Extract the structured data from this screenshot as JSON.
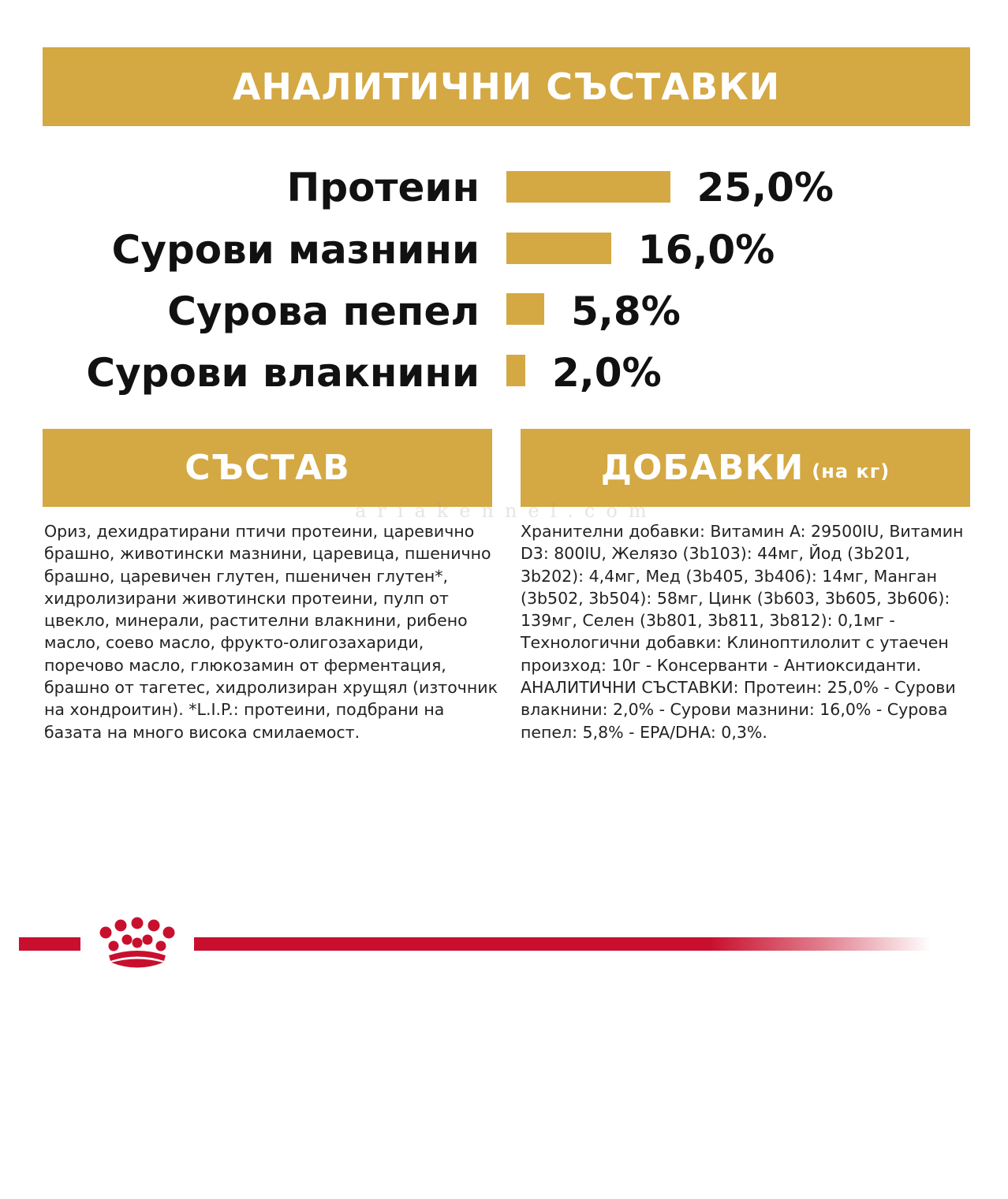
{
  "header": {
    "title": "АНАЛИТИЧНИ СЪСТАВКИ"
  },
  "nutrients": [
    {
      "label": "Протеин",
      "value": "25,0%",
      "percent": 25.0
    },
    {
      "label": "Сурови мазнини",
      "value": "16,0%",
      "percent": 16.0
    },
    {
      "label": "Сурова пепел",
      "value": "5,8%",
      "percent": 5.8
    },
    {
      "label": "Сурови влакнини",
      "value": "2,0%",
      "percent": 2.0
    }
  ],
  "composition": {
    "title": "СЪСТАВ",
    "text": "Ориз, дехидратирани птичи протеини, царевично брашно, животински мазнини, царевица, пшенично брашно, царевичен глутен, пшеничен глутен*, хидролизирани животински протеини, пулп от цвекло, минерали, растителни влакнини, рибено масло, соево масло, фрукто-олигозахариди, поречово масло, глюкозамин от ферментация, брашно от тагетес, хидролизиран хрущял (източник на хондроитин). *L.I.P.: протеини, подбрани на базата на много висока смилаемост."
  },
  "additives": {
    "title": "ДОБАВКИ",
    "subtitle": "(на кг)",
    "text": "Хранителни добавки: Витамин A: 29500IU, Витамин D3: 800IU, Желязо (3b103): 44мг, Йод (3b201, 3b202): 4,4мг, Мед (3b405, 3b406): 14мг, Манган (3b502, 3b504): 58мг, Цинк (3b603, 3b605, 3b606): 139мг, Селен (3b801, 3b811, 3b812): 0,1мг - Технологични добавки: Клиноптилолит с утаечен произход: 10г - Консерванти - Антиоксиданти. АНАЛИТИЧНИ СЪСТАВКИ: Протеин: 25,0% - Сурови влакнини: 2,0% - Сурови мазнини: 16,0% - Сурова пепел: 5,8% - EPA/DHA: 0,3%."
  },
  "watermark": "ariakennel.com",
  "colors": {
    "gold": "#D4A843",
    "brand_red": "#C8102E",
    "text": "#111111"
  },
  "icons": {
    "logo": "royal-canin-crown-icon"
  }
}
